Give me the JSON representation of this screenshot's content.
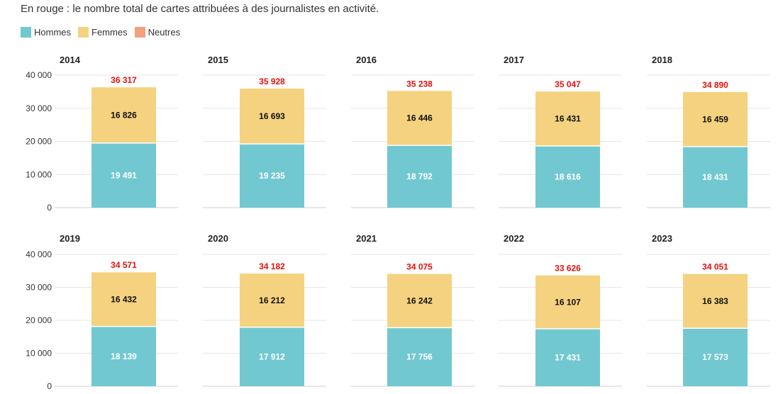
{
  "subtitle": "En rouge : le nombre total de cartes attribuées à des journalistes en activité.",
  "legend": {
    "hommes": "Hommes",
    "femmes": "Femmes",
    "neutres": "Neutres"
  },
  "colors": {
    "hommes": "#72c8d0",
    "femmes": "#f5d280",
    "neutres": "#f3a07d",
    "total": "#e3120b"
  },
  "chart_data": {
    "type": "bar",
    "stacked": true,
    "title": "",
    "subtitle": "En rouge : le nombre total de cartes attribuées à des journalistes en activité.",
    "ylim": [
      0,
      40000
    ],
    "yticks": [
      "0",
      "10 000",
      "20 000",
      "30 000",
      "40 000"
    ],
    "ytick_values": [
      0,
      10000,
      20000,
      30000,
      40000
    ],
    "grid": true,
    "legend_position": "top-left",
    "panels": [
      {
        "year": "2014",
        "hommes": 19491,
        "hommes_label": "19 491",
        "femmes": 16826,
        "femmes_label": "16 826",
        "total": 36317,
        "total_label": "36 317"
      },
      {
        "year": "2015",
        "hommes": 19235,
        "hommes_label": "19 235",
        "femmes": 16693,
        "femmes_label": "16 693",
        "total": 35928,
        "total_label": "35 928"
      },
      {
        "year": "2016",
        "hommes": 18792,
        "hommes_label": "18 792",
        "femmes": 16446,
        "femmes_label": "16 446",
        "total": 35238,
        "total_label": "35 238"
      },
      {
        "year": "2017",
        "hommes": 18616,
        "hommes_label": "18 616",
        "femmes": 16431,
        "femmes_label": "16 431",
        "total": 35047,
        "total_label": "35 047"
      },
      {
        "year": "2018",
        "hommes": 18431,
        "hommes_label": "18 431",
        "femmes": 16459,
        "femmes_label": "16 459",
        "total": 34890,
        "total_label": "34 890"
      },
      {
        "year": "2019",
        "hommes": 18139,
        "hommes_label": "18 139",
        "femmes": 16432,
        "femmes_label": "16 432",
        "total": 34571,
        "total_label": "34 571"
      },
      {
        "year": "2020",
        "hommes": 17912,
        "hommes_label": "17 912",
        "femmes": 16212,
        "femmes_label": "16 212",
        "total": 34182,
        "total_label": "34 182"
      },
      {
        "year": "2021",
        "hommes": 17756,
        "hommes_label": "17 756",
        "femmes": 16242,
        "femmes_label": "16 242",
        "total": 34075,
        "total_label": "34 075"
      },
      {
        "year": "2022",
        "hommes": 17431,
        "hommes_label": "17 431",
        "femmes": 16107,
        "femmes_label": "16 107",
        "total": 33626,
        "total_label": "33 626"
      },
      {
        "year": "2023",
        "hommes": 17573,
        "hommes_label": "17 573",
        "femmes": 16383,
        "femmes_label": "16 383",
        "total": 34051,
        "total_label": "34 051"
      }
    ]
  }
}
